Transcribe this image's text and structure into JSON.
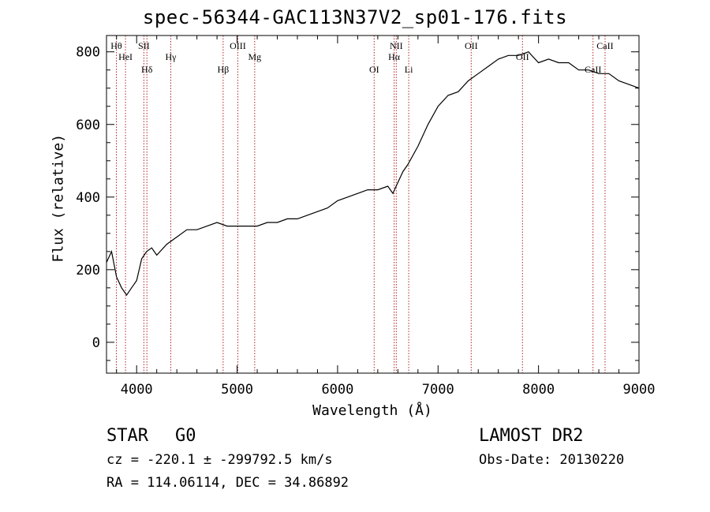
{
  "chart_data": {
    "type": "line",
    "title": "spec-56344-GAC113N37V2_sp01-176.fits",
    "xlabel": "Wavelength (Å)",
    "ylabel": "Flux (relative)",
    "xlim": [
      3700,
      9000
    ],
    "ylim": [
      -85,
      845
    ],
    "xticks": [
      4000,
      5000,
      6000,
      7000,
      8000,
      9000
    ],
    "yticks": [
      0,
      200,
      400,
      600,
      800
    ],
    "grid": false,
    "series": [
      {
        "x": [
          3700,
          3750,
          3800,
          3850,
          3900,
          3950,
          4000,
          4050,
          4100,
          4150,
          4200,
          4300,
          4400,
          4500,
          4600,
          4700,
          4800,
          4900,
          5000,
          5100,
          5200,
          5300,
          5400,
          5500,
          5600,
          5700,
          5800,
          5900,
          6000,
          6100,
          6200,
          6300,
          6400,
          6500,
          6550,
          6600,
          6650,
          6700,
          6800,
          6900,
          7000,
          7100,
          7200,
          7300,
          7400,
          7500,
          7600,
          7700,
          7800,
          7900,
          8000,
          8100,
          8200,
          8300,
          8400,
          8500,
          8600,
          8700,
          8800,
          8900,
          9000
        ],
        "y": [
          220,
          250,
          180,
          150,
          130,
          150,
          170,
          230,
          250,
          260,
          240,
          270,
          290,
          310,
          310,
          320,
          330,
          320,
          320,
          320,
          320,
          330,
          330,
          340,
          340,
          350,
          360,
          370,
          390,
          400,
          410,
          420,
          420,
          430,
          410,
          440,
          470,
          490,
          540,
          600,
          650,
          680,
          690,
          720,
          740,
          760,
          780,
          790,
          790,
          800,
          770,
          780,
          770,
          770,
          750,
          750,
          740,
          740,
          720,
          710,
          700
        ]
      }
    ],
    "lines": [
      {
        "label": "Hθ",
        "x": 3798
      },
      {
        "label": "HeI",
        "x": 3889
      },
      {
        "label": "Hδ",
        "x": 4102
      },
      {
        "label": "SII",
        "x": 4072
      },
      {
        "label": "Hγ",
        "x": 4340
      },
      {
        "label": "Hβ",
        "x": 4861
      },
      {
        "label": "OIII",
        "x": 5007
      },
      {
        "label": "Mg",
        "x": 5175
      },
      {
        "label": "OI",
        "x": 6364
      },
      {
        "label": "NII",
        "x": 6584
      },
      {
        "label": "Hα",
        "x": 6563
      },
      {
        "label": "Li",
        "x": 6708
      },
      {
        "label": "OII",
        "x": 7330
      },
      {
        "label": "OII",
        "x": 7840
      },
      {
        "label": "CaII",
        "x": 8542
      },
      {
        "label": "CaII",
        "x": 8662
      }
    ],
    "line_color": "#b22222"
  },
  "info": {
    "class": "STAR",
    "subclass": "G0",
    "survey": "LAMOST DR2",
    "cz": "cz = -220.1 ± -299792.5 km/s",
    "obs_date": "Obs-Date: 20130220",
    "radec": "RA = 114.06114, DEC =  34.86892"
  }
}
